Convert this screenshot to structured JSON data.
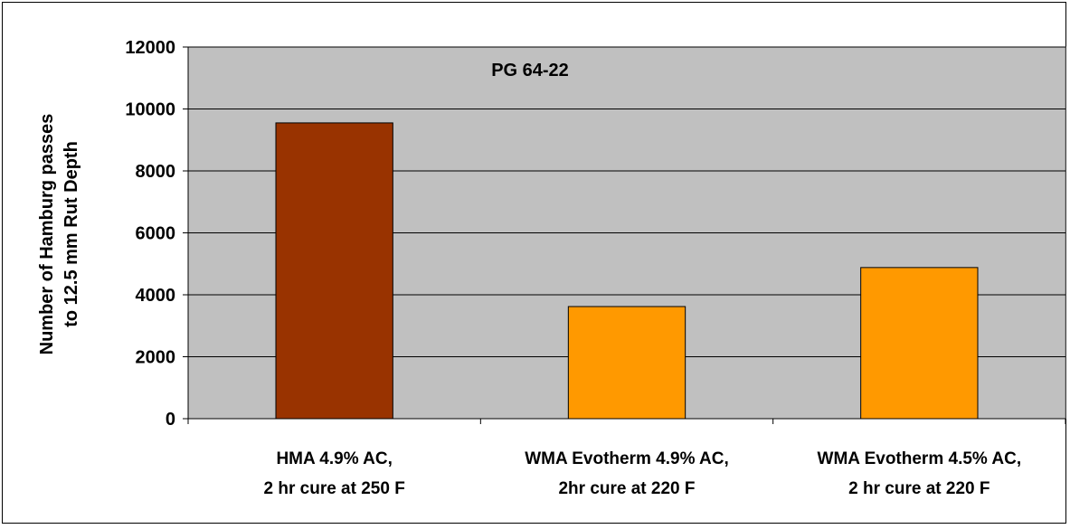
{
  "chart_data": {
    "type": "bar",
    "title": "PG 64-22",
    "ylabel_lines": [
      "Number of Hamburg passes",
      "to 12.5 mm Rut Depth"
    ],
    "xlabel": "",
    "ylim": [
      0,
      12000
    ],
    "ytick_step": 2000,
    "yticks": [
      "0",
      "2000",
      "4000",
      "6000",
      "8000",
      "10000",
      "12000"
    ],
    "grid": true,
    "plot_background": "#c0c0c0",
    "categories": [
      [
        "HMA  4.9% AC,",
        "2 hr cure at 250 F"
      ],
      [
        "WMA Evotherm 4.9% AC,",
        "2hr cure at 220 F"
      ],
      [
        "WMA Evotherm 4.5% AC,",
        "2 hr cure at 220 F"
      ]
    ],
    "values": [
      9550,
      3620,
      4880
    ],
    "bar_colors": [
      "#993300",
      "#ff9900",
      "#ff9900"
    ]
  }
}
